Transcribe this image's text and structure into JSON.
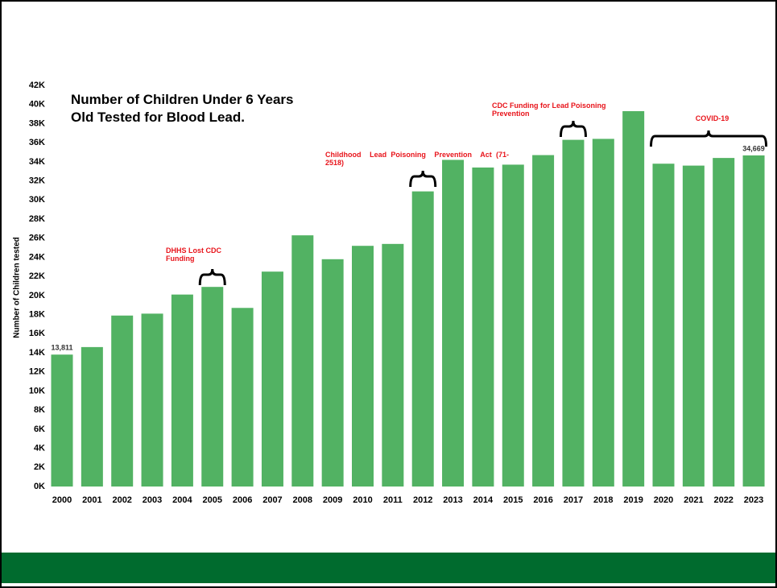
{
  "chart_data": {
    "type": "bar",
    "title": "Number of Children Under 6 Years Old Tested for Blood Lead.",
    "y_label": "Number of Children tested",
    "categories": [
      "2000",
      "2001",
      "2002",
      "2003",
      "2004",
      "2005",
      "2006",
      "2007",
      "2008",
      "2009",
      "2010",
      "2011",
      "2012",
      "2013",
      "2014",
      "2015",
      "2016",
      "2017",
      "2018",
      "2019",
      "2020",
      "2021",
      "2022",
      "2023"
    ],
    "values": [
      13811,
      14600,
      17900,
      18100,
      20100,
      20900,
      18700,
      22500,
      26300,
      23800,
      25200,
      25400,
      30900,
      34200,
      33400,
      33700,
      34700,
      36300,
      36400,
      39300,
      33800,
      33600,
      34400,
      34669
    ],
    "value_labels": [
      "13,811",
      null,
      null,
      null,
      null,
      null,
      null,
      null,
      null,
      null,
      null,
      null,
      null,
      null,
      null,
      null,
      null,
      null,
      null,
      null,
      null,
      null,
      null,
      "34,669"
    ],
    "color": "#52b263",
    "ylim": [
      0,
      42000
    ],
    "yticks": [
      {
        "value": 0,
        "label": "0K"
      },
      {
        "value": 2000,
        "label": "2K"
      },
      {
        "value": 4000,
        "label": "4K"
      },
      {
        "value": 6000,
        "label": "6K"
      },
      {
        "value": 8000,
        "label": "8K"
      },
      {
        "value": 10000,
        "label": "10K"
      },
      {
        "value": 12000,
        "label": "12K"
      },
      {
        "value": 14000,
        "label": "14K"
      },
      {
        "value": 16000,
        "label": "16K"
      },
      {
        "value": 18000,
        "label": "18K"
      },
      {
        "value": 20000,
        "label": "20K"
      },
      {
        "value": 22000,
        "label": "22K"
      },
      {
        "value": 24000,
        "label": "24K"
      },
      {
        "value": 26000,
        "label": "26K"
      },
      {
        "value": 28000,
        "label": "28K"
      },
      {
        "value": 30000,
        "label": "30K"
      },
      {
        "value": 32000,
        "label": "32K"
      },
      {
        "value": 34000,
        "label": "34K"
      },
      {
        "value": 36000,
        "label": "36K"
      },
      {
        "value": 38000,
        "label": "38K"
      },
      {
        "value": 40000,
        "label": "40K"
      },
      {
        "value": 42000,
        "label": "42K"
      }
    ],
    "grid": false,
    "annotations": [
      "DHHS Lost CDC Funding",
      "Childhood  Lead Poisoning  Prevention  Act (71-2518)",
      "CDC Funding for Lead Poisoning Prevention",
      "COVID-19"
    ]
  }
}
